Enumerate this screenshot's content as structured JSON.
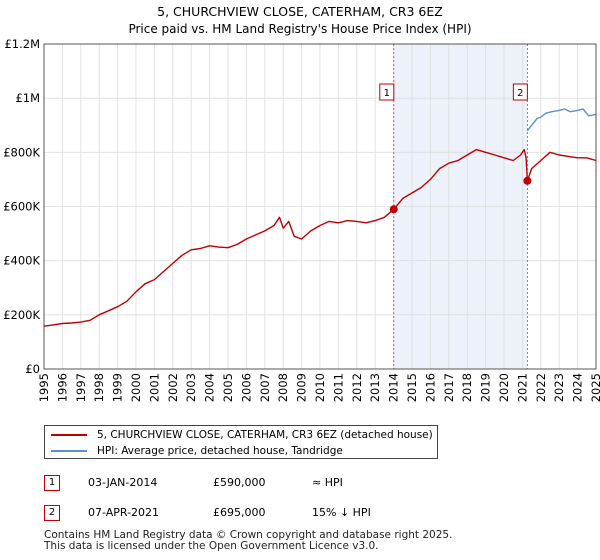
{
  "chart_data": {
    "type": "line",
    "title": "5, CHURCHVIEW CLOSE, CATERHAM, CR3 6EZ",
    "subtitle": "Price paid vs. HM Land Registry's House Price Index (HPI)",
    "xlim": [
      1995,
      2025
    ],
    "ylim": [
      0,
      1200000
    ],
    "x_ticks": [
      "1995",
      "1996",
      "1997",
      "1998",
      "1999",
      "2000",
      "2001",
      "2002",
      "2003",
      "2004",
      "2005",
      "2006",
      "2007",
      "2008",
      "2009",
      "2010",
      "2011",
      "2012",
      "2013",
      "2014",
      "2015",
      "2016",
      "2017",
      "2018",
      "2019",
      "2020",
      "2021",
      "2022",
      "2023",
      "2024",
      "2025"
    ],
    "y_ticks": [
      {
        "value": 0,
        "label": "£0"
      },
      {
        "value": 200000,
        "label": "£200K"
      },
      {
        "value": 400000,
        "label": "£400K"
      },
      {
        "value": 600000,
        "label": "£600K"
      },
      {
        "value": 800000,
        "label": "£800K"
      },
      {
        "value": 1000000,
        "label": "£1M"
      },
      {
        "value": 1200000,
        "label": "£1.2M"
      }
    ],
    "grid": true,
    "colors": {
      "property": "#c00000",
      "hpi": "#5b8fd6",
      "shade": "#dde6f5",
      "grid": "#dddddd"
    },
    "shaded_regions": [
      [
        2014.0,
        2021.27
      ]
    ],
    "series": [
      {
        "name": "5, CHURCHVIEW CLOSE, CATERHAM, CR3 6EZ (detached house)",
        "x": [
          1995.0,
          1995.5,
          1996.0,
          1996.5,
          1997.0,
          1997.5,
          1998.0,
          1998.5,
          1999.0,
          1999.5,
          2000.0,
          2000.5,
          2001.0,
          2001.5,
          2002.0,
          2002.5,
          2003.0,
          2003.5,
          2004.0,
          2004.5,
          2005.0,
          2005.5,
          2006.0,
          2006.5,
          2007.0,
          2007.5,
          2007.8,
          2008.0,
          2008.3,
          2008.6,
          2009.0,
          2009.5,
          2010.0,
          2010.5,
          2011.0,
          2011.5,
          2012.0,
          2012.5,
          2013.0,
          2013.5,
          2014.01,
          2014.5,
          2015.0,
          2015.5,
          2016.0,
          2016.5,
          2017.0,
          2017.5,
          2018.0,
          2018.5,
          2019.0,
          2019.5,
          2020.0,
          2020.5,
          2020.9,
          2021.1,
          2021.2,
          2021.27,
          2021.5,
          2022.0,
          2022.5,
          2023.0,
          2023.5,
          2024.0,
          2024.5,
          2025.0
        ],
        "y": [
          158000,
          163000,
          168000,
          170000,
          173000,
          180000,
          200000,
          215000,
          230000,
          250000,
          285000,
          315000,
          330000,
          360000,
          390000,
          420000,
          440000,
          445000,
          455000,
          450000,
          448000,
          460000,
          480000,
          495000,
          510000,
          530000,
          560000,
          520000,
          545000,
          490000,
          480000,
          510000,
          530000,
          545000,
          540000,
          548000,
          545000,
          540000,
          548000,
          560000,
          590000,
          630000,
          650000,
          670000,
          700000,
          740000,
          760000,
          770000,
          790000,
          810000,
          800000,
          790000,
          780000,
          770000,
          790000,
          810000,
          780000,
          695000,
          740000,
          770000,
          800000,
          790000,
          785000,
          780000,
          780000,
          770000
        ]
      },
      {
        "name": "HPI: Average price, detached house, Tandridge",
        "x": [
          2021.27,
          2021.5,
          2021.8,
          2022.0,
          2022.3,
          2022.6,
          2023.0,
          2023.3,
          2023.6,
          2024.0,
          2024.3,
          2024.6,
          2025.0
        ],
        "y": [
          880000,
          900000,
          925000,
          930000,
          945000,
          950000,
          955000,
          960000,
          950000,
          955000,
          960000,
          935000,
          940000
        ]
      }
    ],
    "markers": [
      {
        "id": "1",
        "x": 2014.01,
        "y": 590000
      },
      {
        "id": "2",
        "x": 2021.27,
        "y": 695000
      }
    ],
    "transactions": [
      {
        "id": "1",
        "date": "03-JAN-2014",
        "price": "£590,000",
        "hpi": "≈ HPI"
      },
      {
        "id": "2",
        "date": "07-APR-2021",
        "price": "£695,000",
        "hpi": "15% ↓ HPI"
      }
    ]
  },
  "footer": {
    "line1": "Contains HM Land Registry data © Crown copyright and database right 2025.",
    "line2": "This data is licensed under the Open Government Licence v3.0."
  }
}
